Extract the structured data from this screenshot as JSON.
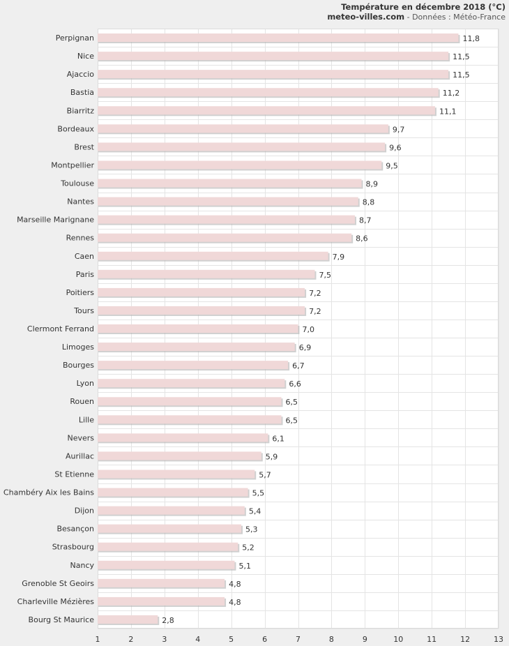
{
  "header": {
    "title": "Température en décembre 2018 (°C)",
    "site": "meteo-villes.com",
    "source": " - Données : Météo-France"
  },
  "chart_data": {
    "type": "bar",
    "orientation": "horizontal",
    "title": "Température en décembre 2018 (°C)",
    "categories": [
      "Perpignan",
      "Nice",
      "Ajaccio",
      "Bastia",
      "Biarritz",
      "Bordeaux",
      "Brest",
      "Montpellier",
      "Toulouse",
      "Nantes",
      "Marseille Marignane",
      "Rennes",
      "Caen",
      "Paris",
      "Poitiers",
      "Tours",
      "Clermont Ferrand",
      "Limoges",
      "Bourges",
      "Lyon",
      "Rouen",
      "Lille",
      "Nevers",
      "Aurillac",
      "St Etienne",
      "Chambéry Aix les Bains",
      "Dijon",
      "Besançon",
      "Strasbourg",
      "Nancy",
      "Grenoble St Geoirs",
      "Charleville Mézières",
      "Bourg St Maurice"
    ],
    "values": [
      11.8,
      11.5,
      11.5,
      11.2,
      11.1,
      9.7,
      9.6,
      9.5,
      8.9,
      8.8,
      8.7,
      8.6,
      7.9,
      7.5,
      7.2,
      7.2,
      7.0,
      6.9,
      6.7,
      6.6,
      6.5,
      6.5,
      6.1,
      5.9,
      5.7,
      5.5,
      5.4,
      5.3,
      5.2,
      5.1,
      4.8,
      4.8,
      2.8
    ],
    "value_labels": [
      "11,8",
      "11,5",
      "11,5",
      "11,2",
      "11,1",
      "9,7",
      "9,6",
      "9,5",
      "8,9",
      "8,8",
      "8,7",
      "8,6",
      "7,9",
      "7,5",
      "7,2",
      "7,2",
      "7,0",
      "6,9",
      "6,7",
      "6,6",
      "6,5",
      "6,5",
      "6,1",
      "5,9",
      "5,7",
      "5,5",
      "5,4",
      "5,3",
      "5,2",
      "5,1",
      "4,8",
      "4,8",
      "2,8"
    ],
    "xlim": [
      1,
      13
    ],
    "x_ticks": [
      "1",
      "2",
      "3",
      "4",
      "5",
      "6",
      "7",
      "8",
      "9",
      "10",
      "11",
      "12",
      "13"
    ],
    "grid": true,
    "bar_color": "#f0d8d8",
    "bar_shadow_color": "#b0b0b0"
  }
}
